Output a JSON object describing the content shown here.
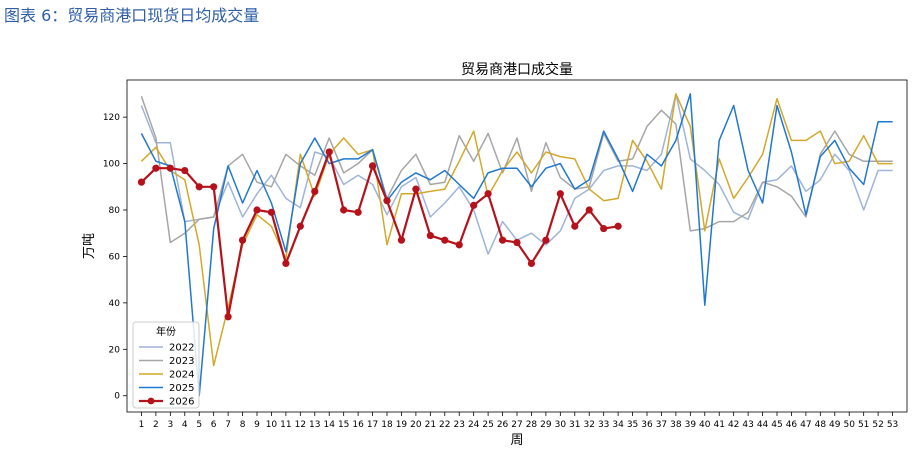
{
  "figure_caption": "图表 6：贸易商港口现货日均成交量",
  "colors": {
    "caption": "#2e5fa8",
    "series_2022": "#9fb4d9",
    "series_2023": "#a6a6a6",
    "series_2024": "#d4a82a",
    "series_2025": "#1f78d1",
    "series_2026": "#b5121b"
  },
  "chart_data": {
    "type": "line",
    "title": "贸易商港口成交量",
    "xlabel": "周",
    "ylabel": "万吨",
    "xlim": [
      0,
      54
    ],
    "ylim": [
      -7,
      136
    ],
    "x_ticks": [
      1,
      2,
      3,
      4,
      5,
      6,
      7,
      8,
      9,
      10,
      11,
      12,
      13,
      14,
      15,
      16,
      17,
      18,
      19,
      20,
      21,
      22,
      23,
      24,
      25,
      26,
      27,
      28,
      29,
      30,
      31,
      32,
      33,
      34,
      35,
      36,
      37,
      38,
      39,
      40,
      41,
      42,
      43,
      44,
      45,
      46,
      47,
      48,
      49,
      50,
      51,
      52,
      53
    ],
    "y_ticks": [
      0,
      20,
      40,
      60,
      80,
      100,
      120
    ],
    "grid": false,
    "legend": {
      "title": "年份",
      "position": "lower-left"
    },
    "series": [
      {
        "name": "2022",
        "x": [
          1,
          2,
          3,
          4,
          5,
          6,
          7,
          8,
          9,
          10,
          11,
          12,
          13,
          14,
          15,
          16,
          17,
          18,
          19,
          20,
          21,
          22,
          23,
          24,
          25,
          26,
          27,
          28,
          29,
          30,
          31,
          32,
          33,
          34,
          35,
          36,
          37,
          38,
          39,
          40,
          41,
          42,
          43,
          44,
          45,
          46,
          47,
          48,
          49,
          50,
          51,
          52,
          53
        ],
        "values": [
          125,
          109,
          109,
          75,
          76,
          77,
          92,
          77,
          87,
          95,
          85,
          81,
          105,
          103,
          91,
          95,
          91,
          78,
          90,
          94,
          77,
          83,
          90,
          80,
          61,
          75,
          67,
          70,
          65,
          71,
          85,
          89,
          97,
          99,
          99,
          97,
          104,
          130,
          102,
          97,
          91,
          79,
          76,
          92,
          93,
          99,
          88,
          93,
          104,
          97,
          80,
          97,
          97
        ]
      },
      {
        "name": "2023",
        "x": [
          1,
          2,
          3,
          4,
          5,
          6,
          7,
          8,
          9,
          10,
          11,
          12,
          13,
          14,
          15,
          16,
          17,
          18,
          19,
          20,
          21,
          22,
          23,
          24,
          25,
          26,
          27,
          28,
          29,
          30,
          31,
          32,
          33,
          34,
          35,
          36,
          37,
          38,
          39,
          40,
          41,
          42,
          43,
          44,
          45,
          46,
          47,
          48,
          49,
          50,
          51,
          52,
          53
        ],
        "values": [
          129,
          111,
          66,
          70,
          76,
          77,
          99,
          104,
          92,
          90,
          104,
          99,
          95,
          111,
          96,
          100,
          106,
          85,
          97,
          104,
          91,
          92,
          112,
          101,
          113,
          96,
          111,
          88,
          109,
          94,
          89,
          90,
          113,
          101,
          102,
          116,
          123,
          117,
          71,
          72,
          75,
          75,
          79,
          92,
          90,
          86,
          77,
          104,
          114,
          104,
          101,
          101,
          101
        ]
      },
      {
        "name": "2024",
        "x": [
          1,
          2,
          3,
          4,
          5,
          6,
          7,
          8,
          9,
          10,
          11,
          12,
          13,
          14,
          15,
          16,
          17,
          18,
          19,
          20,
          21,
          22,
          23,
          24,
          25,
          26,
          27,
          28,
          29,
          30,
          31,
          32,
          33,
          34,
          35,
          36,
          37,
          38,
          39,
          40,
          41,
          42,
          43,
          44,
          45,
          46,
          47,
          48,
          49,
          50,
          51,
          52,
          53
        ],
        "values": [
          101,
          107,
          97,
          93,
          65,
          13,
          38,
          65,
          78,
          73,
          59,
          104,
          86,
          104,
          111,
          104,
          106,
          65,
          87,
          87,
          88,
          89,
          101,
          114,
          86,
          97,
          105,
          96,
          105,
          103,
          102,
          89,
          84,
          85,
          110,
          101,
          89,
          130,
          116,
          71,
          102,
          85,
          94,
          104,
          128,
          110,
          110,
          114,
          100,
          101,
          112,
          100,
          100
        ]
      },
      {
        "name": "2025",
        "x": [
          1,
          2,
          3,
          4,
          5,
          6,
          7,
          8,
          9,
          10,
          11,
          12,
          13,
          14,
          15,
          16,
          17,
          18,
          19,
          20,
          21,
          22,
          23,
          24,
          25,
          26,
          27,
          28,
          29,
          30,
          31,
          32,
          33,
          34,
          35,
          36,
          37,
          38,
          39,
          40,
          41,
          42,
          43,
          44,
          45,
          46,
          47,
          48,
          49,
          50,
          51,
          52,
          53
        ],
        "values": [
          113,
          101,
          99,
          75,
          0,
          72,
          99,
          83,
          97,
          83,
          62,
          100,
          111,
          100,
          102,
          102,
          106,
          84,
          92,
          96,
          93,
          97,
          91,
          85,
          96,
          98,
          98,
          90,
          98,
          100,
          89,
          93,
          114,
          102,
          88,
          104,
          99,
          110,
          130,
          39,
          110,
          125,
          97,
          83,
          125,
          105,
          78,
          103,
          110,
          98,
          91,
          118,
          118
        ]
      },
      {
        "name": "2026",
        "x": [
          1,
          2,
          3,
          4,
          5,
          6,
          7,
          8,
          9,
          10,
          11,
          12,
          13,
          14,
          15,
          16,
          17,
          18,
          19,
          20,
          21,
          22,
          23,
          24,
          25,
          26,
          27,
          28,
          29,
          30,
          31,
          32,
          33,
          34
        ],
        "values": [
          92,
          98,
          98,
          97,
          90,
          90,
          34,
          67,
          80,
          79,
          57,
          73,
          88,
          105,
          80,
          79,
          99,
          84,
          67,
          89,
          69,
          67,
          65,
          82,
          87,
          67,
          66,
          57,
          67,
          87,
          73,
          80,
          72,
          73
        ]
      }
    ]
  }
}
